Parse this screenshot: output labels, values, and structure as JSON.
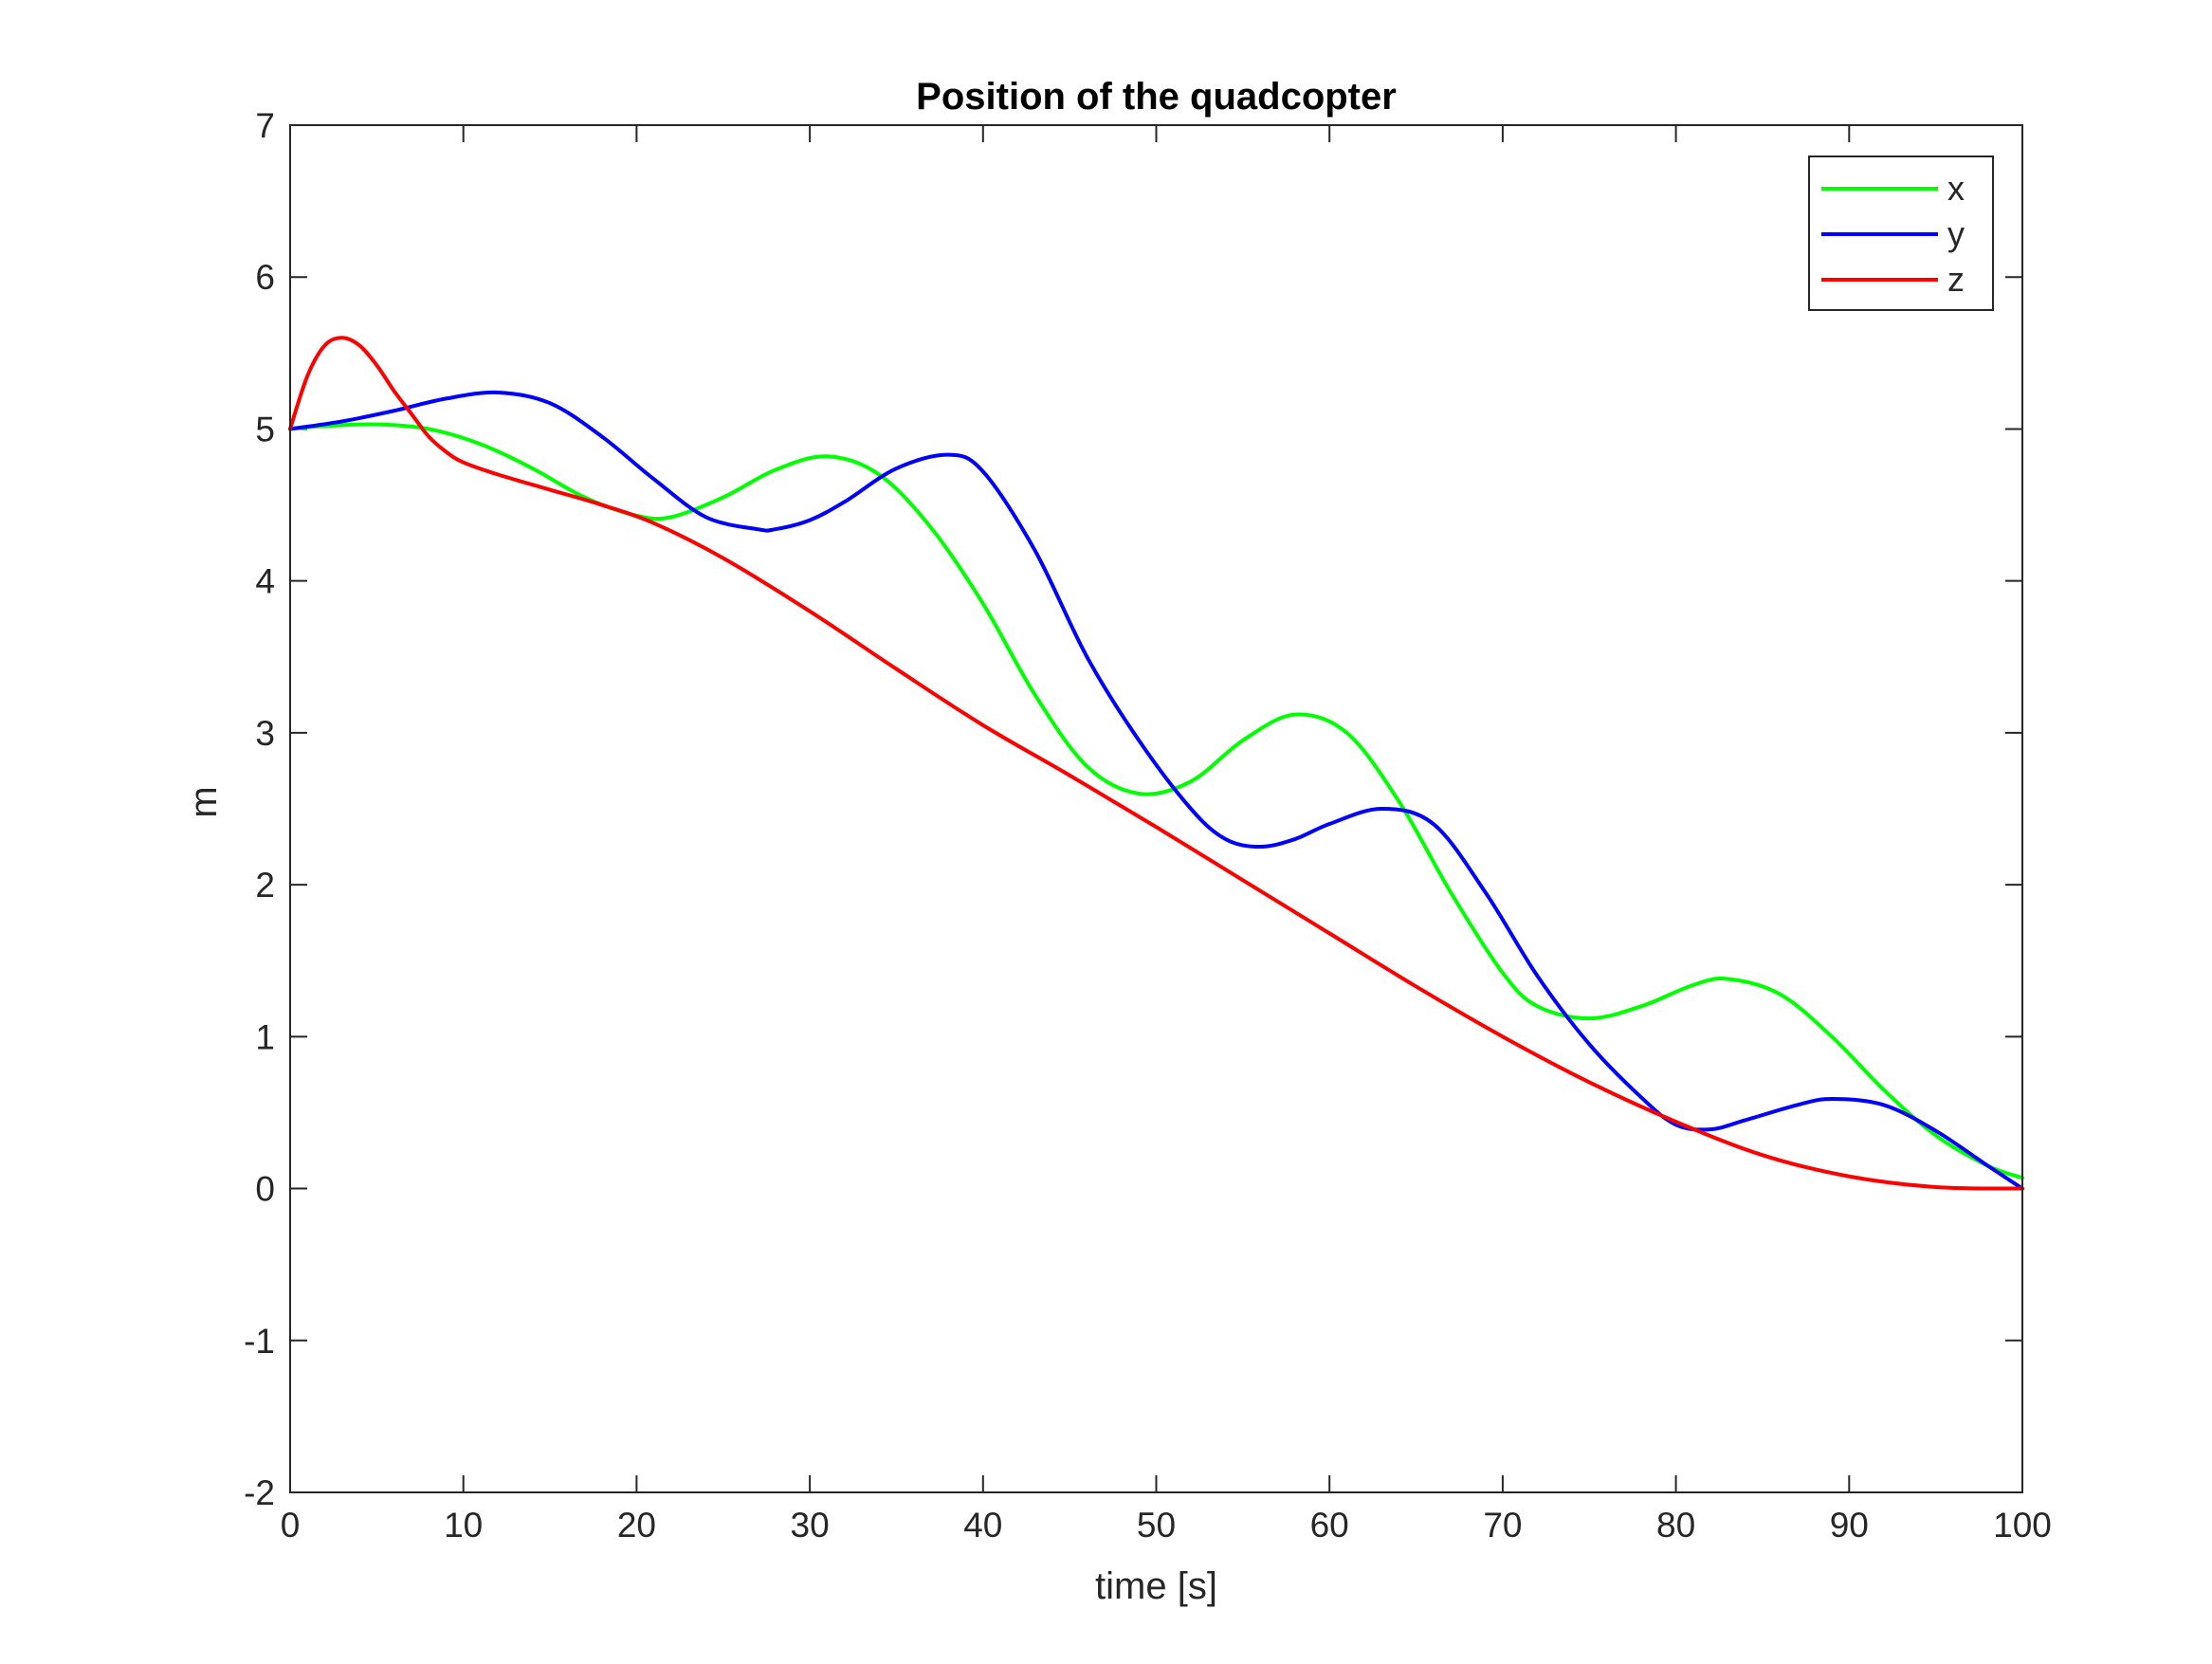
{
  "chart_data": {
    "type": "line",
    "title": "Position of the quadcopter",
    "xlabel": "time [s]",
    "ylabel": "m",
    "xlim": [
      0,
      100
    ],
    "ylim": [
      -2,
      7
    ],
    "xticks": [
      0,
      10,
      20,
      30,
      40,
      50,
      60,
      70,
      80,
      90,
      100
    ],
    "yticks": [
      -2,
      -1,
      0,
      1,
      2,
      3,
      4,
      5,
      6,
      7
    ],
    "grid": false,
    "box": true,
    "legend_position": "top-right",
    "series": [
      {
        "name": "x",
        "color": "#00ff00",
        "x": [
          0,
          2,
          5,
          8,
          11,
          14,
          17,
          20,
          22,
          25,
          28,
          31,
          34,
          37,
          40,
          43,
          46,
          49,
          52,
          55,
          58,
          61,
          64,
          67,
          70,
          72,
          75,
          78,
          81,
          83,
          86,
          89,
          92,
          95,
          98,
          100
        ],
        "y": [
          5.0,
          5.02,
          5.03,
          5.0,
          4.9,
          4.74,
          4.55,
          4.43,
          4.42,
          4.55,
          4.73,
          4.82,
          4.7,
          4.35,
          3.85,
          3.25,
          2.78,
          2.6,
          2.68,
          2.95,
          3.12,
          3.0,
          2.55,
          1.95,
          1.42,
          1.2,
          1.12,
          1.2,
          1.34,
          1.38,
          1.28,
          1.0,
          0.65,
          0.35,
          0.15,
          0.07
        ]
      },
      {
        "name": "y",
        "color": "#0000ff",
        "x": [
          0,
          3,
          6,
          9,
          12,
          15,
          18,
          21,
          24,
          27,
          28,
          30,
          32,
          35,
          38,
          40,
          43,
          46,
          49,
          52,
          54,
          56,
          58,
          60,
          63,
          66,
          69,
          72,
          75,
          78,
          80,
          82,
          84,
          87,
          89,
          92,
          95,
          98,
          100
        ],
        "y": [
          5.0,
          5.05,
          5.12,
          5.2,
          5.24,
          5.17,
          4.95,
          4.67,
          4.42,
          4.34,
          4.34,
          4.4,
          4.52,
          4.74,
          4.83,
          4.72,
          4.2,
          3.5,
          2.95,
          2.5,
          2.3,
          2.25,
          2.3,
          2.4,
          2.5,
          2.4,
          1.95,
          1.4,
          0.95,
          0.6,
          0.42,
          0.39,
          0.45,
          0.55,
          0.59,
          0.55,
          0.38,
          0.15,
          0.0
        ]
      },
      {
        "name": "z",
        "color": "#ff0000",
        "x": [
          0,
          1,
          2,
          3,
          4,
          5,
          6,
          7,
          8,
          9,
          10,
          12,
          15,
          18,
          21,
          25,
          30,
          35,
          40,
          45,
          50,
          55,
          60,
          65,
          70,
          75,
          80,
          85,
          90,
          95,
          100
        ],
        "y": [
          5.0,
          5.35,
          5.55,
          5.6,
          5.55,
          5.42,
          5.25,
          5.1,
          4.95,
          4.85,
          4.78,
          4.7,
          4.6,
          4.5,
          4.38,
          4.15,
          3.8,
          3.42,
          3.05,
          2.72,
          2.38,
          2.03,
          1.68,
          1.33,
          1.0,
          0.7,
          0.44,
          0.22,
          0.08,
          0.01,
          0.0
        ]
      }
    ]
  }
}
